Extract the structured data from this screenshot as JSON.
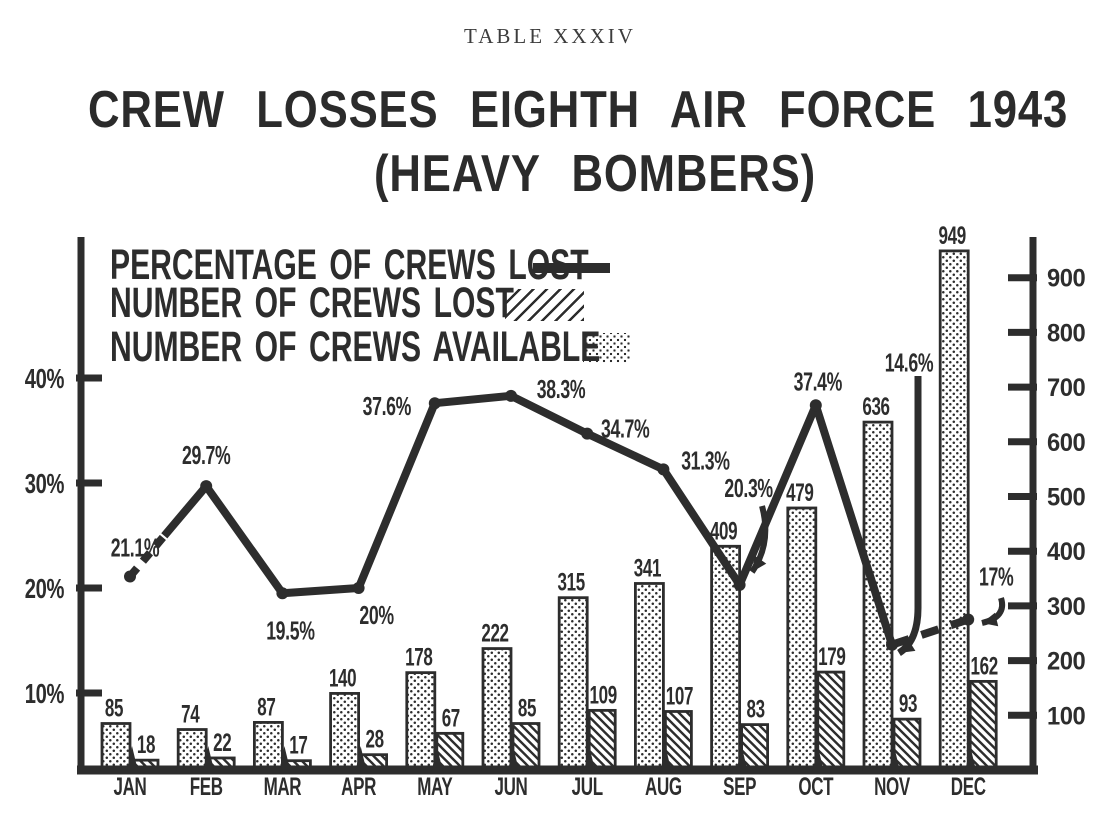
{
  "caption": "TABLE XXXIV",
  "title": {
    "line1": "CREW LOSSES EIGHTH AIR FORCE 1943",
    "line2": "(HEAVY BOMBERS)"
  },
  "legend": {
    "items": [
      {
        "label": "PERCENTAGE OF CREWS LOST",
        "swatch": "thick-line"
      },
      {
        "label": "NUMBER OF CREWS LOST",
        "swatch": "diagonal-hatch"
      },
      {
        "label": "NUMBER OF CREWS AVAILABLE",
        "swatch": "dot-screen"
      }
    ]
  },
  "colors": {
    "ink": "#2d2d2d",
    "paper": "#ffffff"
  },
  "chart_data": {
    "type": "combo-bar-line",
    "categories": [
      "JAN",
      "FEB",
      "MAR",
      "APR",
      "MAY",
      "JUN",
      "JUL",
      "AUG",
      "SEP",
      "OCT",
      "NOV",
      "DEC"
    ],
    "series": [
      {
        "name": "PERCENTAGE OF CREWS LOST",
        "type": "line",
        "axis": "left-percent",
        "values": [
          21.1,
          29.7,
          19.5,
          20,
          37.6,
          38.3,
          34.7,
          31.3,
          20.3,
          37.4,
          14.6,
          17
        ],
        "point_labels": [
          "21.1%",
          "29.7%",
          "19.5%",
          "20%",
          "37.6%",
          "38.3%",
          "34.7%",
          "31.3%",
          "20.3%",
          "37.4%",
          "14.6%",
          "17%"
        ]
      },
      {
        "name": "NUMBER OF CREWS AVAILABLE",
        "type": "bar",
        "axis": "right-count",
        "pattern": "dot-screen",
        "values": [
          85,
          74,
          87,
          140,
          178,
          222,
          315,
          341,
          409,
          479,
          636,
          949
        ]
      },
      {
        "name": "NUMBER OF CREWS LOST",
        "type": "bar",
        "axis": "right-count",
        "pattern": "diagonal-hatch",
        "values": [
          18,
          22,
          17,
          28,
          67,
          85,
          109,
          107,
          83,
          179,
          93,
          162
        ]
      }
    ],
    "left_axis": {
      "unit": "%",
      "ticks": [
        10,
        20,
        30,
        40
      ],
      "tick_labels": [
        "10%",
        "20%",
        "30%",
        "40%"
      ]
    },
    "right_axis": {
      "ticks": [
        100,
        200,
        300,
        400,
        500,
        600,
        700,
        800,
        900
      ]
    },
    "annotations": {
      "arrow_pointed_labels": [
        "20.3%",
        "14.6%",
        "17%"
      ],
      "dashed_segments": [
        "JAN-FEB",
        "NOV-DEC"
      ],
      "grid": "off",
      "legend_position": "top-left inside plot"
    }
  }
}
